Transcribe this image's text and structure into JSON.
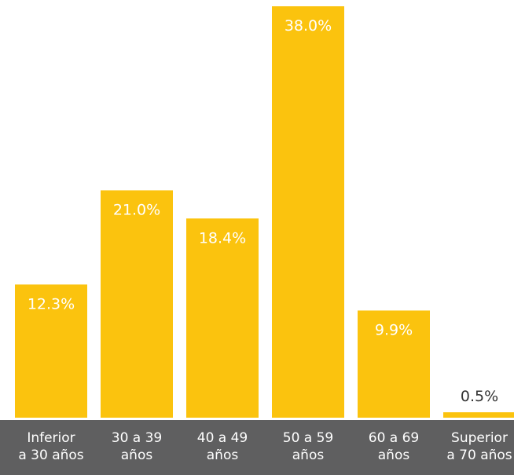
{
  "chart_data": {
    "type": "bar",
    "categories": [
      [
        "Inferior",
        "a 30 años"
      ],
      [
        "30 a 39",
        "años"
      ],
      [
        "40 a 49",
        "años"
      ],
      [
        "50 a 59",
        "años"
      ],
      [
        "60 a 69",
        "años"
      ],
      [
        "Superior",
        "a 70 años"
      ]
    ],
    "values": [
      12.3,
      21.0,
      18.4,
      38.0,
      9.9,
      0.5
    ],
    "value_labels": [
      "12.3%",
      "21.0%",
      "18.4%",
      "38.0%",
      "9.9%",
      "0.5%"
    ],
    "title": "",
    "xlabel": "",
    "ylabel": "",
    "ylim": [
      0,
      38.0
    ],
    "grid": false,
    "colors": {
      "bar": "#fbc30e",
      "axis_strip": "#5f5f60",
      "label_inside": "#ffffff",
      "label_outside": "#333333",
      "category_text": "#ffffff"
    }
  }
}
